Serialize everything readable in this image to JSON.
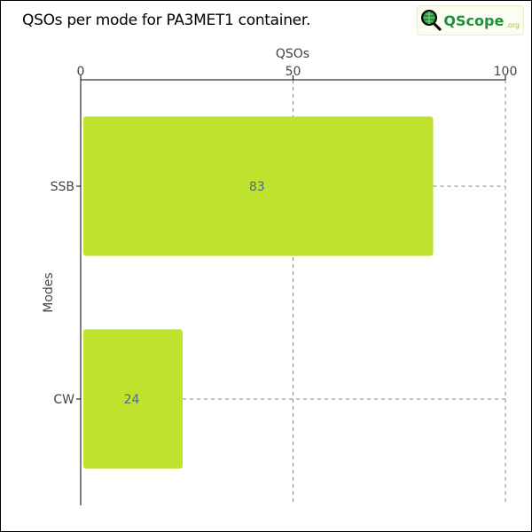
{
  "title": "QSOs per mode for PA3MET1 container.",
  "logo": {
    "text": "QScope",
    "suffix": ".org"
  },
  "chart_data": {
    "type": "bar",
    "orientation": "horizontal",
    "title": "QSOs per mode for PA3MET1 container.",
    "xlabel": "QSOs",
    "ylabel": "Modes",
    "xlim": [
      0,
      100
    ],
    "xticks": [
      "0",
      "50",
      "100"
    ],
    "x_axis_position": "top",
    "grid": "dashed vertical and category guide lines",
    "categories": [
      "SSB",
      "CW"
    ],
    "values": [
      83,
      24
    ],
    "data_labels": [
      "83",
      "24"
    ],
    "bar_color": "#bfe22e",
    "label_color": "#4a6a8a"
  }
}
